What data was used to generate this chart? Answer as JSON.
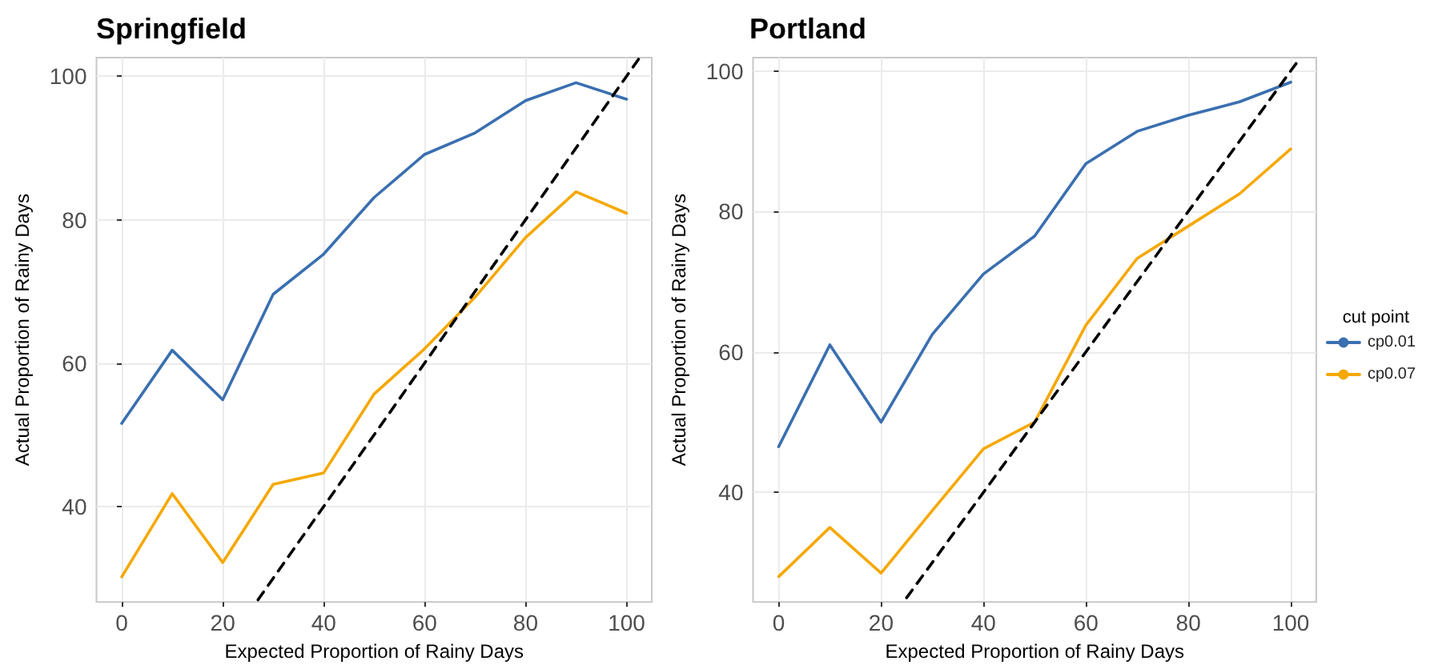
{
  "chart_data": [
    {
      "type": "line",
      "title": "Springfield",
      "xlabel": "Expected Proportion of Rainy Days",
      "ylabel": "Actual Proportion of Rainy Days",
      "x": [
        0,
        10,
        20,
        30,
        40,
        50,
        60,
        70,
        80,
        90,
        100
      ],
      "xlim": [
        -5,
        105
      ],
      "ylim": [
        26.7,
        102.6
      ],
      "xticks": [
        0,
        20,
        40,
        60,
        80,
        100
      ],
      "yticks": [
        40,
        60,
        80,
        100
      ],
      "grid": true,
      "legend": false,
      "marker": "none",
      "line_style": "solid",
      "series": [
        {
          "color": "#3a6fb0",
          "values": [
            51.6,
            61.8,
            54.9,
            69.6,
            75.2,
            83.1,
            89.1,
            92.1,
            96.6,
            99.1,
            96.8
          ]
        },
        {
          "color": "#f5a800",
          "values": [
            30.2,
            41.8,
            32.2,
            43.1,
            44.7,
            55.7,
            62.0,
            69.2,
            77.5,
            83.9,
            80.9
          ]
        },
        {
          "color": "#000000",
          "line_style": "dashed",
          "x": [
            27,
            102.6
          ],
          "values": [
            27,
            102.6
          ]
        }
      ]
    },
    {
      "type": "line",
      "title": "Portland",
      "xlabel": "Expected Proportion of Rainy Days",
      "ylabel": "Actual Proportion of Rainy Days",
      "legend_title": "cut point",
      "x": [
        0,
        10,
        20,
        30,
        40,
        50,
        60,
        70,
        80,
        90,
        100
      ],
      "xlim": [
        -5,
        105
      ],
      "ylim": [
        24.4,
        101.9
      ],
      "xticks": [
        0,
        20,
        40,
        60,
        80,
        100
      ],
      "yticks": [
        40,
        60,
        80,
        100
      ],
      "grid": true,
      "legend": "right",
      "marker": "none",
      "line_style": "solid",
      "series": [
        {
          "name": "cp0.01",
          "color": "#3a6fb0",
          "values": [
            46.5,
            61.0,
            50.0,
            62.5,
            71.1,
            76.5,
            86.8,
            91.4,
            93.7,
            95.6,
            98.4
          ]
        },
        {
          "name": "cp0.07",
          "color": "#f5a800",
          "values": [
            28.0,
            35.0,
            28.5,
            37.4,
            46.2,
            50.0,
            63.8,
            73.3,
            77.9,
            82.5,
            88.9
          ]
        },
        {
          "color": "#000000",
          "line_style": "dashed",
          "x": [
            25,
            101.9
          ],
          "values": [
            25,
            101.9
          ]
        }
      ]
    }
  ]
}
